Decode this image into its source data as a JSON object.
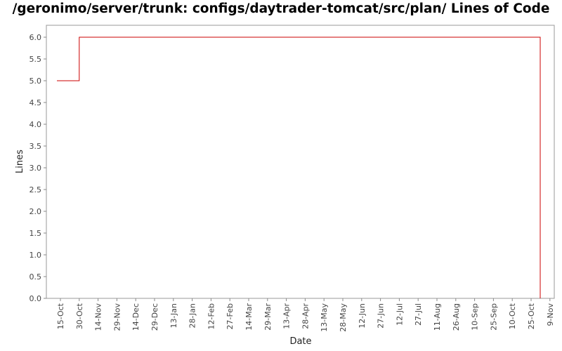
{
  "chart_data": {
    "type": "line",
    "title": "/geronimo/server/trunk: configs/daytrader-tomcat/src/plan/ Lines of Code",
    "xlabel": "Date",
    "ylabel": "Lines",
    "ylim": [
      0.0,
      6.0
    ],
    "y_ticks": [
      "0.0",
      "0.5",
      "1.0",
      "1.5",
      "2.0",
      "2.5",
      "3.0",
      "3.5",
      "4.0",
      "4.5",
      "5.0",
      "5.5",
      "6.0"
    ],
    "x_ticks": [
      "15-Oct",
      "30-Oct",
      "14-Nov",
      "29-Nov",
      "14-Dec",
      "29-Dec",
      "13-Jan",
      "28-Jan",
      "12-Feb",
      "27-Feb",
      "14-Mar",
      "29-Mar",
      "13-Apr",
      "28-Apr",
      "13-May",
      "28-May",
      "12-Jun",
      "27-Jun",
      "12-Jul",
      "27-Jul",
      "11-Aug",
      "26-Aug",
      "10-Sep",
      "25-Sep",
      "10-Oct",
      "25-Oct",
      "9-Nov"
    ],
    "grid": false,
    "line_color": "#cc0000",
    "series": [
      {
        "x": [
          "15-Oct",
          "30-Oct",
          "30-Oct",
          "25-Oct",
          "25-Oct"
        ],
        "values": [
          5.0,
          5.0,
          6.0,
          6.0,
          0.0
        ],
        "step": "post"
      }
    ]
  }
}
